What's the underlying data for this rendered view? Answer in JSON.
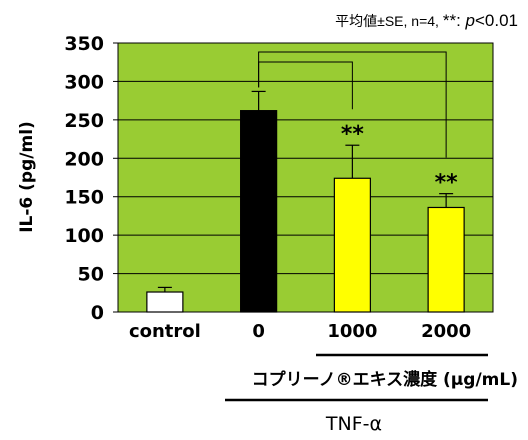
{
  "chart_data": {
    "type": "bar",
    "note": {
      "prefix": "平均値±SE,  n=4, ",
      "stars": "**",
      "colon": ": ",
      "p": "p",
      "threshold": "<0.01"
    },
    "ylabel": "IL-6 (pg/ml)",
    "ylim": [
      0,
      350
    ],
    "yticks": [
      "0",
      "50",
      "100",
      "150",
      "200",
      "250",
      "300",
      "350"
    ],
    "grid": true,
    "plot_background": "#99CC33",
    "categories": [
      "control",
      "0",
      "1000",
      "2000"
    ],
    "values": [
      26,
      262,
      174,
      136
    ],
    "errors": [
      6,
      25,
      43,
      18
    ],
    "bar_colors": [
      "#FFFFFF",
      "#000000",
      "#FFFF00",
      "#FFFF00"
    ],
    "significance": [
      {
        "from": "0",
        "to": "1000",
        "label": "**"
      },
      {
        "from": "0",
        "to": "2000",
        "label": "**"
      }
    ],
    "group_label": "コプリーノ®エキス濃度 (μg/mL)",
    "treatment_label": "TNF-α"
  }
}
